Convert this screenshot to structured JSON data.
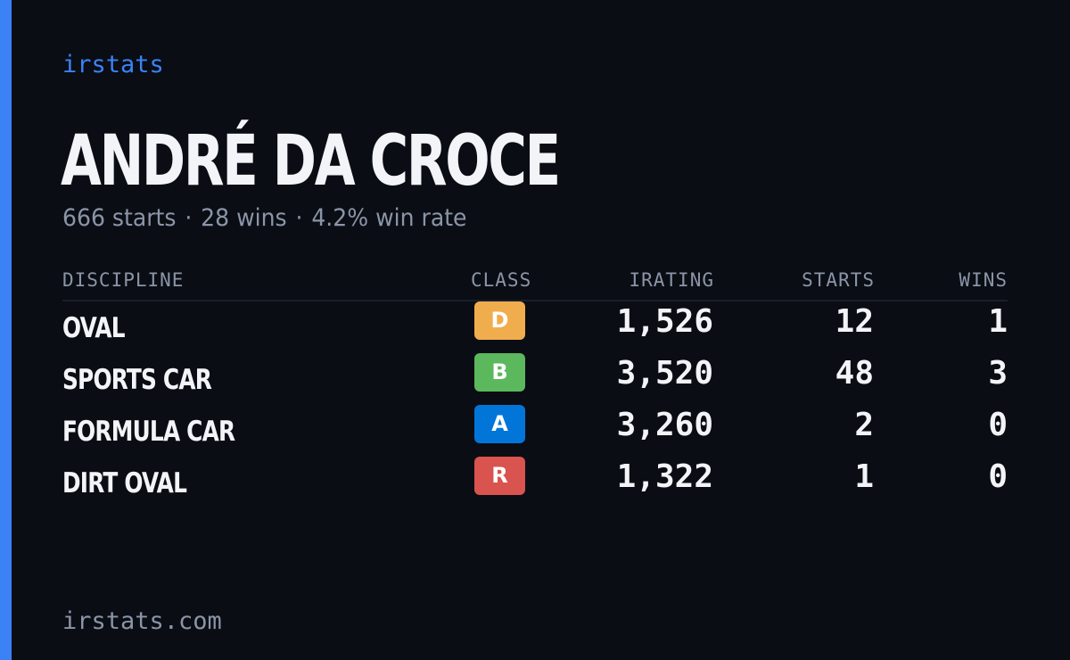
{
  "brand": "irstats",
  "driver": {
    "name": "ANDRÉ DA CROCE"
  },
  "summary": {
    "starts": "666 starts",
    "wins": "28 wins",
    "win_rate": "4.2% win rate",
    "separator": "·"
  },
  "table": {
    "headers": {
      "discipline": "DISCIPLINE",
      "class": "CLASS",
      "irating": "IRATING",
      "starts": "STARTS",
      "wins": "WINS"
    },
    "rows": [
      {
        "discipline": "OVAL",
        "class": "D",
        "class_color": "#f0ad4e",
        "irating": "1,526",
        "starts": "12",
        "wins": "1"
      },
      {
        "discipline": "SPORTS CAR",
        "class": "B",
        "class_color": "#5cb85c",
        "irating": "3,520",
        "starts": "48",
        "wins": "3"
      },
      {
        "discipline": "FORMULA CAR",
        "class": "A",
        "class_color": "#0275d8",
        "irating": "3,260",
        "starts": "2",
        "wins": "0"
      },
      {
        "discipline": "DIRT OVAL",
        "class": "R",
        "class_color": "#d9534f",
        "irating": "1,322",
        "starts": "1",
        "wins": "0"
      }
    ]
  },
  "footer": {
    "url": "irstats.com"
  },
  "colors": {
    "accent": "#3b82f6",
    "background": "#0a0d14",
    "text": "#f2f4f8",
    "muted": "#8b95a7"
  }
}
